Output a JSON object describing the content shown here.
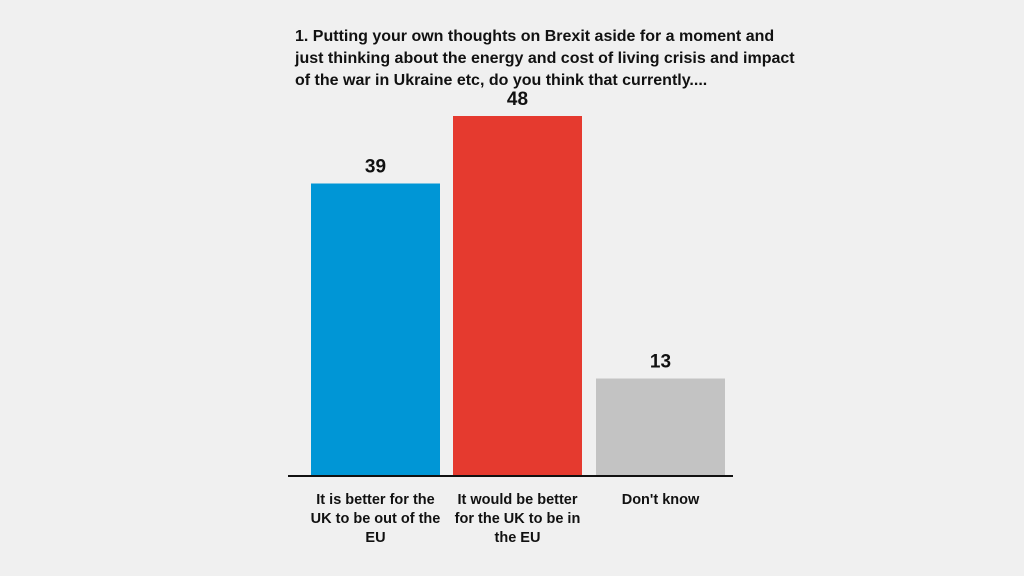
{
  "chart_data": {
    "type": "bar",
    "title": "1. Putting your own thoughts on Brexit aside for a moment and just thinking about the energy and cost of living crisis and impact of the war in Ukraine etc, do you think that currently....",
    "categories": [
      "It is better for the UK to be out of the EU",
      "It would be better for the UK to be in the EU",
      "Don't know"
    ],
    "values": [
      39,
      48,
      13
    ],
    "colors": [
      "#0096d6",
      "#e53a2f",
      "#c3c3c3"
    ],
    "ylim": [
      0,
      48
    ],
    "grid": false,
    "legend": "none",
    "xlabel": "",
    "ylabel": ""
  }
}
